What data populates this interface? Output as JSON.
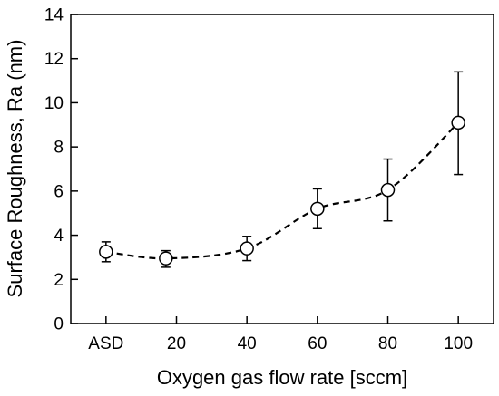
{
  "chart_data": {
    "type": "scatter",
    "xlabel": "Oxygen gas flow rate [sccm]",
    "ylabel": "Surface Roughness, Ra (nm)",
    "xlim": [
      -10,
      110
    ],
    "ylim": [
      0,
      14
    ],
    "x_ticks": [
      {
        "value": 0,
        "label": "ASD"
      },
      {
        "value": 20,
        "label": "20"
      },
      {
        "value": 40,
        "label": "40"
      },
      {
        "value": 60,
        "label": "60"
      },
      {
        "value": 80,
        "label": "80"
      },
      {
        "value": 100,
        "label": "100"
      }
    ],
    "y_ticks": [
      0,
      2,
      4,
      6,
      8,
      10,
      12,
      14
    ],
    "grid": false,
    "legend": "none",
    "series": [
      {
        "marker": "open-circle",
        "trend_line": "dashed",
        "points": [
          {
            "x": 0,
            "y": 3.25,
            "err_low": 0.45,
            "err_high": 0.45
          },
          {
            "x": 17,
            "y": 2.95,
            "err_low": 0.4,
            "err_high": 0.35
          },
          {
            "x": 40,
            "y": 3.4,
            "err_low": 0.55,
            "err_high": 0.55
          },
          {
            "x": 60,
            "y": 5.2,
            "err_low": 0.9,
            "err_high": 0.9
          },
          {
            "x": 80,
            "y": 6.05,
            "err_low": 1.4,
            "err_high": 1.4
          },
          {
            "x": 100,
            "y": 9.1,
            "err_low": 2.35,
            "err_high": 2.3
          }
        ]
      }
    ]
  }
}
